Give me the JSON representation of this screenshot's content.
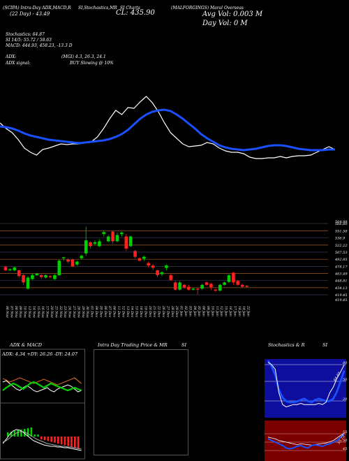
{
  "header": {
    "title_tags": "(SCIPA) Intra-Day ADX,MACD,R",
    "stoch_tag": "SI,Stochastics,MR",
    "si_tag": "SI Charts",
    "symbol": "(MALFORGINGS) Maral Overseas",
    "date_line": "(22 Day) - 43.49",
    "close_label": "CL: 435.90",
    "avg_vol": "Avg Vol: 0.003 M",
    "day_vol": "Day Vol: 0   M"
  },
  "stats": {
    "stochastics": "Stochastics: 64.87",
    "si": "SI 14/5: 55.72 / 58.63",
    "macd": "MACD: 444.93, 458.23, -13.3 D",
    "adx": "ADX:",
    "adx_values": "(MGI) 4.3, 26.3, 24.1",
    "adx_signal": "ADX signal:",
    "adx_signal_value": "BUY Slowing @ 10%"
  },
  "colors": {
    "up": "#00d000",
    "down": "#ff2020",
    "ma": "#1a50ff",
    "level_line": "#a05a20",
    "grid": "#555555"
  },
  "chart_data": [
    {
      "type": "line",
      "name": "top-panel",
      "series": [
        {
          "color": "#ffffff",
          "values": [
            176,
            184,
            190,
            200,
            212,
            218,
            222,
            214,
            212,
            209,
            206,
            207,
            206,
            206,
            204,
            203,
            196,
            184,
            170,
            158,
            164,
            154,
            155,
            146,
            138,
            147,
            160,
            176,
            190,
            198,
            206,
            210,
            209,
            208,
            204,
            206,
            212,
            216,
            218,
            218,
            220,
            225,
            227,
            227,
            226,
            226,
            224,
            226,
            224,
            223,
            223,
            222,
            218,
            214,
            210,
            214
          ]
        },
        {
          "color": "#1a50ff",
          "values": [
            181,
            182,
            184,
            187,
            191,
            194,
            196,
            198,
            200,
            201,
            202,
            203,
            204,
            205,
            204,
            203,
            202,
            201,
            199,
            196,
            192,
            186,
            178,
            170,
            164,
            160,
            158,
            157,
            159,
            164,
            170,
            177,
            184,
            192,
            198,
            203,
            208,
            211,
            213,
            214,
            215,
            214,
            213,
            211,
            209,
            208,
            208,
            209,
            211,
            213,
            214,
            215,
            215,
            215,
            214,
            214
          ]
        }
      ]
    },
    {
      "type": "candlestick",
      "name": "price-panel",
      "y_ticks": [
        "566.80",
        "551.58",
        "536.9",
        "522.22",
        "507.53",
        "492.85",
        "478.17",
        "463.49",
        "448.81",
        "434.13",
        "419.45"
      ],
      "y_ticks_extra": [
        "564.98",
        "419.45"
      ],
      "x_labels": [
        "06 Nov",
        "07 Nov",
        "08 Nov",
        "09 Nov",
        "10 Nov",
        "13 Nov",
        "14 Nov",
        "15 Nov",
        "16 Nov",
        "17 Nov",
        "20 Nov",
        "21 Nov",
        "22 Nov",
        "23 Nov",
        "24 Nov",
        "27 Nov",
        "28 Nov",
        "29 Nov",
        "30 Nov",
        "01 Dec",
        "04 Dec",
        "05 Dec",
        "06 Dec",
        "07 Dec",
        "08 Dec",
        "11 Dec",
        "12 Dec",
        "13 Dec",
        "14 Dec",
        "15 Dec",
        "18 Dec",
        "19 Dec",
        "20 Dec",
        "21 Dec",
        "22 Dec",
        "26 Dec",
        "27 Dec",
        "28 Dec",
        "29 Dec",
        "01 Jan",
        "02 Jan",
        "03 Jan",
        "04 Jan",
        "05 Jan",
        "08 Jan",
        "09 Jan",
        "10 Jan",
        "11 Jan",
        "12 Jan",
        "15 Jan",
        "16 Jan",
        "17 Jan",
        "18 Jan",
        "19 Jan",
        "22 Jan"
      ],
      "candles": [
        {
          "o": 477,
          "c": 470,
          "h": 480,
          "l": 468
        },
        {
          "o": 470,
          "c": 472,
          "h": 474,
          "l": 469
        },
        {
          "o": 470,
          "c": 476,
          "h": 478,
          "l": 468
        },
        {
          "o": 470,
          "c": 458,
          "h": 472,
          "l": 455
        },
        {
          "o": 460,
          "c": 445,
          "h": 462,
          "l": 440
        },
        {
          "o": 432,
          "c": 455,
          "h": 458,
          "l": 430
        },
        {
          "o": 452,
          "c": 460,
          "h": 463,
          "l": 450
        },
        {
          "o": 460,
          "c": 463,
          "h": 465,
          "l": 458
        },
        {
          "o": 460,
          "c": 456,
          "h": 462,
          "l": 452
        },
        {
          "o": 455,
          "c": 460,
          "h": 462,
          "l": 453
        },
        {
          "o": 458,
          "c": 456,
          "h": 460,
          "l": 454
        },
        {
          "o": 452,
          "c": 460,
          "h": 462,
          "l": 450
        },
        {
          "o": 460,
          "c": 490,
          "h": 492,
          "l": 458
        },
        {
          "o": 495,
          "c": 497,
          "h": 498,
          "l": 490
        },
        {
          "o": 492,
          "c": 488,
          "h": 495,
          "l": 485
        },
        {
          "o": 492,
          "c": 478,
          "h": 494,
          "l": 476
        },
        {
          "o": 482,
          "c": 488,
          "h": 490,
          "l": 480
        },
        {
          "o": 495,
          "c": 500,
          "h": 502,
          "l": 492
        },
        {
          "o": 505,
          "c": 532,
          "h": 560,
          "l": 500
        },
        {
          "o": 528,
          "c": 520,
          "h": 530,
          "l": 515
        },
        {
          "o": 525,
          "c": 528,
          "h": 532,
          "l": 522
        },
        {
          "o": 520,
          "c": 530,
          "h": 534,
          "l": 518
        },
        {
          "o": 545,
          "c": 549,
          "h": 552,
          "l": 540
        },
        {
          "o": 530,
          "c": 540,
          "h": 543,
          "l": 528
        },
        {
          "o": 550,
          "c": 530,
          "h": 552,
          "l": 525
        },
        {
          "o": 530,
          "c": 543,
          "h": 548,
          "l": 528
        },
        {
          "o": 545,
          "c": 548,
          "h": 550,
          "l": 540
        },
        {
          "o": 540,
          "c": 515,
          "h": 545,
          "l": 510
        },
        {
          "o": 520,
          "c": 540,
          "h": 542,
          "l": 518
        },
        {
          "o": 510,
          "c": 498,
          "h": 512,
          "l": 495
        },
        {
          "o": 495,
          "c": 490,
          "h": 497,
          "l": 488
        },
        {
          "o": 494,
          "c": 498,
          "h": 500,
          "l": 490
        },
        {
          "o": 485,
          "c": 480,
          "h": 488,
          "l": 476
        },
        {
          "o": 480,
          "c": 475,
          "h": 483,
          "l": 470
        },
        {
          "o": 470,
          "c": 460,
          "h": 472,
          "l": 456
        },
        {
          "o": 462,
          "c": 466,
          "h": 468,
          "l": 458
        },
        {
          "o": 475,
          "c": 480,
          "h": 482,
          "l": 470
        },
        {
          "o": 460,
          "c": 450,
          "h": 463,
          "l": 448
        },
        {
          "o": 445,
          "c": 430,
          "h": 448,
          "l": 428
        },
        {
          "o": 430,
          "c": 445,
          "h": 448,
          "l": 428
        },
        {
          "o": 440,
          "c": 435,
          "h": 442,
          "l": 432
        },
        {
          "o": 436,
          "c": 430,
          "h": 440,
          "l": 428
        },
        {
          "o": 430,
          "c": 432,
          "h": 434,
          "l": 428
        },
        {
          "o": 432,
          "c": 430,
          "h": 434,
          "l": 420
        },
        {
          "o": 432,
          "c": 440,
          "h": 442,
          "l": 430
        },
        {
          "o": 445,
          "c": 440,
          "h": 447,
          "l": 438
        },
        {
          "o": 442,
          "c": 435,
          "h": 444,
          "l": 430
        },
        {
          "o": 430,
          "c": 428,
          "h": 432,
          "l": 425
        },
        {
          "o": 428,
          "c": 440,
          "h": 442,
          "l": 426
        },
        {
          "o": 440,
          "c": 445,
          "h": 447,
          "l": 438
        },
        {
          "o": 446,
          "c": 460,
          "h": 462,
          "l": 444
        },
        {
          "o": 465,
          "c": 445,
          "h": 467,
          "l": 440
        },
        {
          "o": 448,
          "c": 440,
          "h": 450,
          "l": 438
        },
        {
          "o": 440,
          "c": 436,
          "h": 443,
          "l": 434
        },
        {
          "o": 438,
          "c": 436,
          "h": 440,
          "l": 434
        }
      ]
    },
    {
      "type": "line",
      "name": "adx-panel",
      "title": "ADX  & MACD",
      "readout": "ADX: 4.34  +DY: 26.26  -DY: 24.07"
    },
    {
      "type": "bar",
      "name": "intraday-panel",
      "title": "Intra  Day Trading Price  & MR"
    },
    {
      "type": "line",
      "name": "stoch-panel",
      "title": "Stochastics  & R",
      "y_ticks": [
        "80",
        "50",
        "20"
      ],
      "si_ticks": [
        "55",
        "50",
        "45"
      ],
      "annot_stoch": "64.87",
      "annot_si": "55.72"
    }
  ]
}
